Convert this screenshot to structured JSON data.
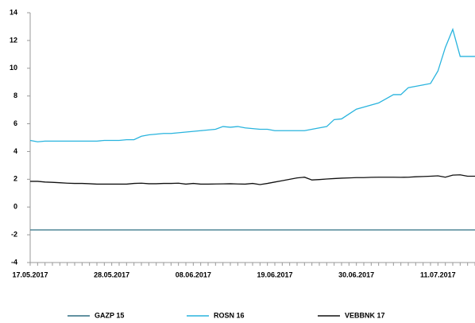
{
  "chart_data": {
    "type": "line",
    "categories": [
      "17.05.2017",
      null,
      null,
      null,
      null,
      null,
      null,
      null,
      null,
      null,
      null,
      "28.05.2017",
      null,
      null,
      null,
      null,
      null,
      null,
      null,
      null,
      null,
      null,
      "08.06.2017",
      null,
      null,
      null,
      null,
      null,
      null,
      null,
      null,
      null,
      null,
      "19.06.2017",
      null,
      null,
      null,
      null,
      null,
      null,
      null,
      null,
      null,
      null,
      "30.06.2017",
      null,
      null,
      null,
      null,
      null,
      null,
      null,
      null,
      null,
      null,
      "11.07.2017",
      null,
      null,
      null,
      null,
      null
    ],
    "series": [
      {
        "name": "GAZP 15",
        "color": "#2e6f82",
        "values": [
          -1.65,
          -1.65,
          -1.65,
          -1.65,
          -1.65,
          -1.65,
          -1.65,
          -1.65,
          -1.65,
          -1.65,
          -1.65,
          -1.65,
          -1.65,
          -1.65,
          -1.65,
          -1.65,
          -1.65,
          -1.65,
          -1.65,
          -1.65,
          -1.65,
          -1.65,
          -1.65,
          -1.65,
          -1.65,
          -1.65,
          -1.65,
          -1.65,
          -1.65,
          -1.65,
          -1.65,
          -1.65,
          -1.65,
          -1.65,
          -1.65,
          -1.65,
          -1.65,
          -1.65,
          -1.65,
          -1.65,
          -1.65,
          -1.65,
          -1.65,
          -1.65,
          -1.65,
          -1.65,
          -1.65,
          -1.65,
          -1.65,
          -1.65,
          -1.65,
          -1.65,
          -1.65,
          -1.65,
          -1.65,
          -1.65,
          -1.65,
          -1.65,
          -1.65,
          -1.65,
          -1.65
        ]
      },
      {
        "name": "ROSN 16",
        "color": "#29b4de",
        "values": [
          4.8,
          4.7,
          4.75,
          4.75,
          4.75,
          4.75,
          4.75,
          4.75,
          4.75,
          4.75,
          4.8,
          4.8,
          4.8,
          4.85,
          4.85,
          5.1,
          5.2,
          5.25,
          5.3,
          5.3,
          5.35,
          5.4,
          5.45,
          5.5,
          5.55,
          5.6,
          5.8,
          5.75,
          5.8,
          5.7,
          5.65,
          5.6,
          5.6,
          5.5,
          5.5,
          5.5,
          5.5,
          5.5,
          5.6,
          5.7,
          5.8,
          6.3,
          6.35,
          6.7,
          7.05,
          7.2,
          7.35,
          7.5,
          7.8,
          8.1,
          8.1,
          8.6,
          8.7,
          8.8,
          8.9,
          9.8,
          11.5,
          12.8,
          10.85,
          10.85,
          10.85
        ]
      },
      {
        "name": "VEBBNK 17",
        "color": "#111111",
        "values": [
          1.85,
          1.85,
          1.8,
          1.78,
          1.75,
          1.72,
          1.7,
          1.7,
          1.68,
          1.65,
          1.65,
          1.65,
          1.65,
          1.65,
          1.7,
          1.72,
          1.68,
          1.68,
          1.7,
          1.7,
          1.72,
          1.65,
          1.7,
          1.65,
          1.65,
          1.66,
          1.67,
          1.68,
          1.66,
          1.65,
          1.7,
          1.62,
          1.7,
          1.8,
          1.9,
          2.0,
          2.1,
          2.15,
          1.95,
          1.98,
          2.02,
          2.05,
          2.08,
          2.1,
          2.12,
          2.12,
          2.14,
          2.15,
          2.15,
          2.15,
          2.14,
          2.15,
          2.18,
          2.2,
          2.22,
          2.25,
          2.15,
          2.3,
          2.32,
          2.22,
          2.22
        ]
      }
    ],
    "ylim": [
      -4,
      14
    ],
    "yticks": [
      -4,
      -2,
      0,
      2,
      4,
      6,
      8,
      10,
      12,
      14
    ],
    "legend": "bottom"
  }
}
